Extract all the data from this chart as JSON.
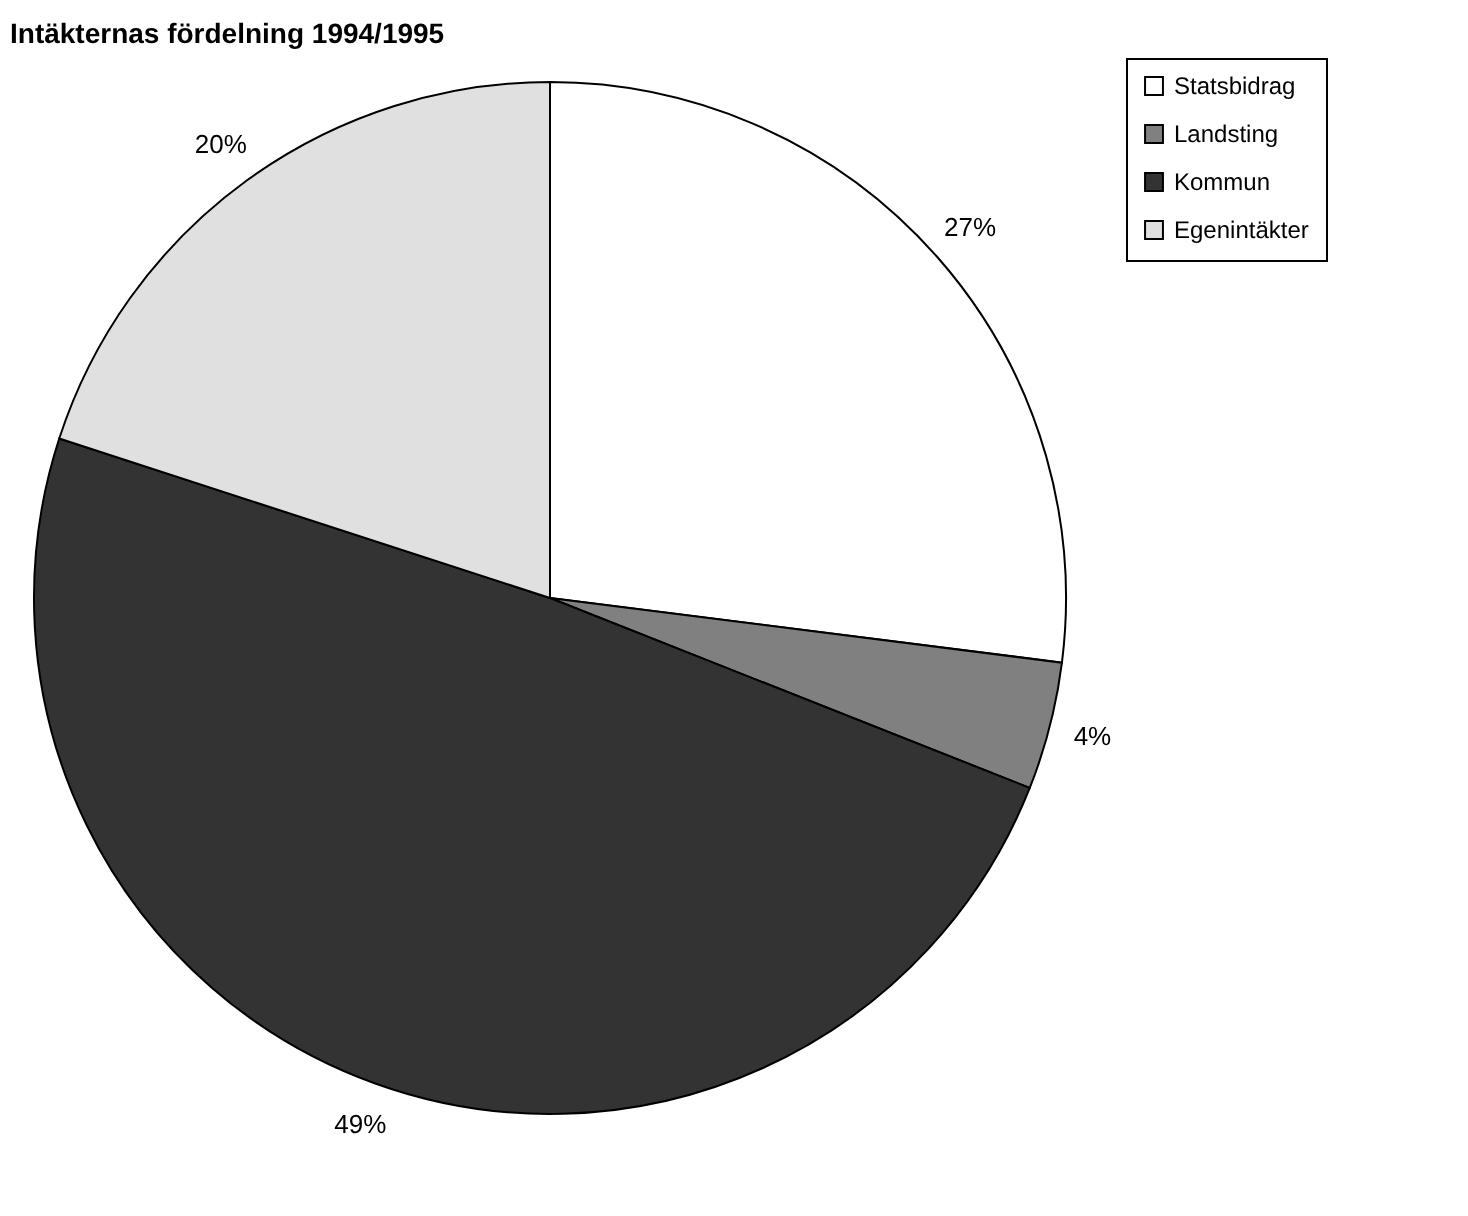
{
  "chart_data": {
    "type": "pie",
    "title": "Intäkternas fördelning 1994/1995",
    "categories": [
      "Statsbidrag",
      "Landsting",
      "Kommun",
      "Egenintäkter"
    ],
    "values": [
      27,
      4,
      49,
      20
    ],
    "colors": [
      "#ffffff",
      "#808080",
      "#333333",
      "#e0e0e0"
    ],
    "value_labels": [
      "27%",
      "4%",
      "49%",
      "20%"
    ],
    "legend": "right"
  }
}
